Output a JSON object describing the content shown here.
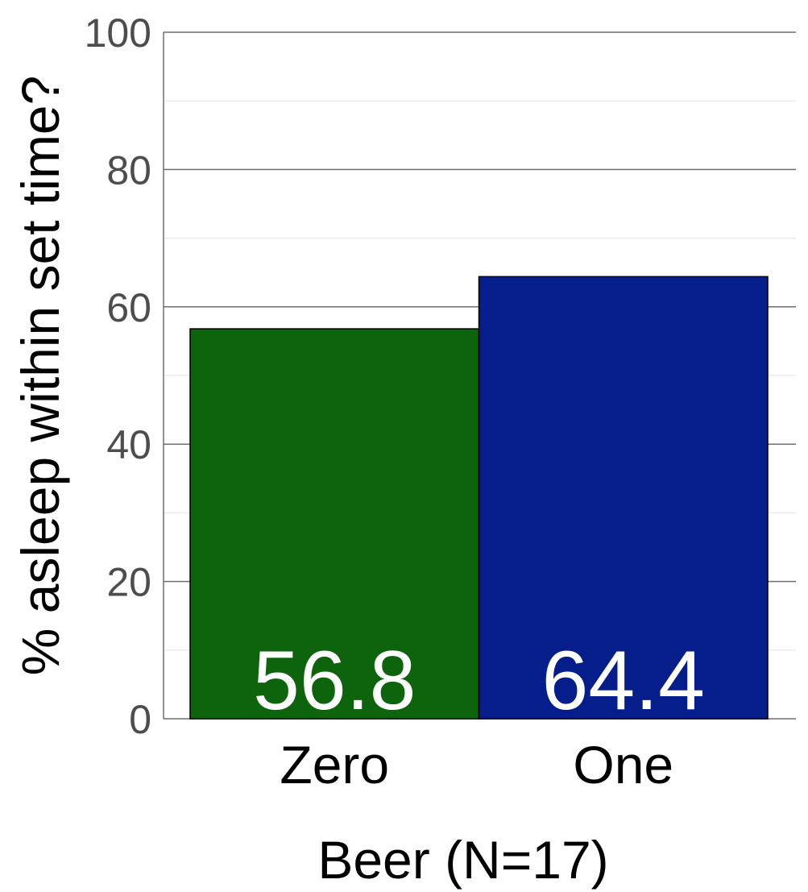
{
  "chart_data": {
    "type": "bar",
    "categories": [
      "Zero",
      "One"
    ],
    "values": [
      56.8,
      64.4
    ],
    "data_labels": [
      "56.8",
      "64.4"
    ],
    "colors": [
      "#0d640d",
      "#061e8c"
    ],
    "xlabel": "Beer (N=17)",
    "ylabel": "% asleep within set time?",
    "ylim": [
      0,
      100
    ],
    "yticks": [
      "0",
      "20",
      "40",
      "60",
      "80",
      "100"
    ],
    "grid": true
  }
}
